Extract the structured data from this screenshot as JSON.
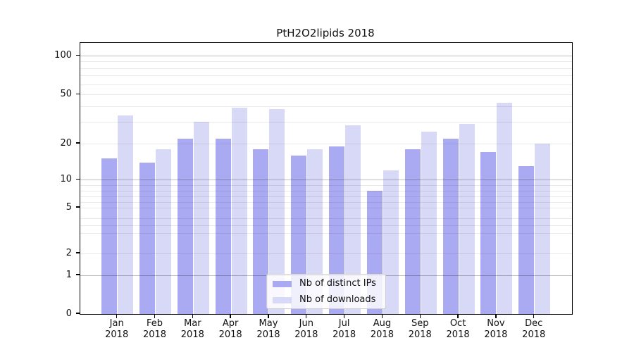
{
  "title": "PtH2O2lipids 2018",
  "chart_data": {
    "type": "bar",
    "title": "PtH2O2lipids 2018",
    "xlabel": "",
    "ylabel": "",
    "categories": [
      "Jan",
      "Feb",
      "Mar",
      "Apr",
      "May",
      "Jun",
      "Jul",
      "Aug",
      "Sep",
      "Oct",
      "Nov",
      "Dec"
    ],
    "category_year": "2018",
    "series": [
      {
        "name": "Nb of distinct IPs",
        "color": "#aaaaf2",
        "values": [
          15,
          14,
          22,
          22,
          18,
          16,
          19,
          8,
          18,
          22,
          17,
          13
        ]
      },
      {
        "name": "Nb of downloads",
        "color": "#d8d8f7",
        "values": [
          34,
          18,
          30,
          39,
          38,
          18,
          28,
          12,
          25,
          29,
          43,
          20
        ]
      }
    ],
    "y_axis": {
      "scale": "log-like (non-uniform decades, 0 baseline)",
      "tick_labels": [
        0,
        1,
        2,
        5,
        10,
        20,
        50,
        100
      ],
      "major_gridlines": [
        1,
        10,
        100
      ],
      "minor_gridlines": [
        2,
        3,
        3.5,
        4,
        5,
        6,
        7,
        8,
        9,
        20,
        30,
        40,
        50,
        60,
        70,
        80,
        90
      ],
      "range": [
        0,
        110
      ],
      "grid": "on, drawn over bars"
    },
    "legend": {
      "position": "bottom-center",
      "entries": [
        "Nb of distinct IPs",
        "Nb of downloads"
      ]
    }
  }
}
